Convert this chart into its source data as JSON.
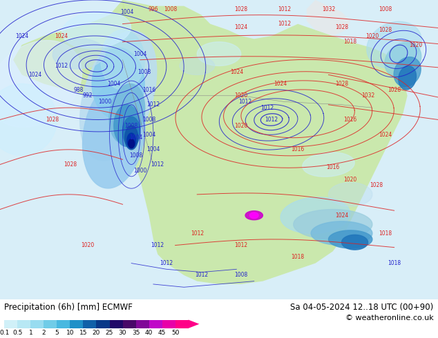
{
  "title_left": "Precipitation (6h) [mm] ECMWF",
  "title_right": "Sa 04-05-2024 12..18 UTC (00+90)",
  "copyright": "© weatheronline.co.uk",
  "colorbar_levels": [
    0.1,
    0.5,
    1,
    2,
    5,
    10,
    15,
    20,
    25,
    30,
    35,
    40,
    45,
    50
  ],
  "colorbar_colors": [
    "#c8f0f8",
    "#aae8f5",
    "#88ddf0",
    "#66cce8",
    "#44bce0",
    "#2299cc",
    "#1166aa",
    "#0044cc",
    "#2200aa",
    "#660099",
    "#9900bb",
    "#cc00dd",
    "#ee00bb",
    "#ff0088"
  ],
  "ocean_color": "#d8eef8",
  "land_color": "#c8e8a0",
  "precip_light": "#aaddee",
  "precip_mid": "#55aacc",
  "precip_dark": "#1155aa",
  "precip_vdark": "#0000aa",
  "bg_color": "#ffffff",
  "red_contour_color": "#dd2222",
  "blue_contour_color": "#2222cc",
  "title_fontsize": 8.5,
  "label_fontsize": 7,
  "cb_label_fontsize": 6.5
}
